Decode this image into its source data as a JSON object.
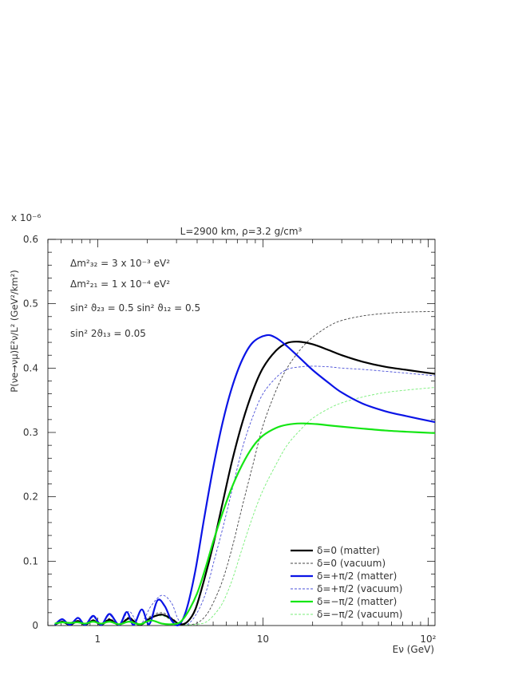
{
  "chart_data": {
    "type": "line",
    "title": "L=2900 km, ρ=3.2 g/cm³",
    "xlabel": "Eν (GeV)",
    "ylabel": "P(νe→νμ)E²ν/L²  (GeV²/km²)",
    "y_multiplier": "x 10⁻⁶",
    "x_scale": "log",
    "xlim": [
      0.5,
      110
    ],
    "ylim": [
      0,
      0.6
    ],
    "x_ticks": [
      {
        "value": 1,
        "label": "1"
      },
      {
        "value": 10,
        "label": "10"
      },
      {
        "value": 100,
        "label": "10²"
      }
    ],
    "y_ticks": [
      {
        "value": 0,
        "label": "0"
      },
      {
        "value": 0.1,
        "label": "0.1"
      },
      {
        "value": 0.2,
        "label": "0.2"
      },
      {
        "value": 0.3,
        "label": "0.3"
      },
      {
        "value": 0.4,
        "label": "0.4"
      },
      {
        "value": 0.5,
        "label": "0.5"
      },
      {
        "value": 0.6,
        "label": "0.6"
      }
    ],
    "annotations": [
      "Δm²₃₂ = 3 x 10⁻³ eV²",
      "Δm²₂₁ = 1 x 10⁻⁴ eV²",
      "sin² ϑ₂₃ = 0.5    sin² ϑ₁₂ = 0.5",
      "sin² 2ϑ₁₃ = 0.05"
    ],
    "legend_position": "bottom-right",
    "series": [
      {
        "name": "δ=0 (matter)",
        "color": "#000000",
        "style": "solid",
        "x": [
          0.55,
          0.61,
          0.68,
          0.76,
          0.84,
          0.94,
          1.05,
          1.18,
          1.35,
          1.55,
          1.8,
          2.1,
          2.45,
          2.8,
          3.15,
          3.5,
          3.9,
          4.4,
          5,
          5.7,
          6.5,
          7.5,
          8.7,
          10,
          12,
          14,
          16.5,
          20,
          25,
          30,
          40,
          55,
          75,
          110
        ],
        "y": [
          0.001,
          0.006,
          0.001,
          0.007,
          0.001,
          0.008,
          0.001,
          0.009,
          0.001,
          0.011,
          0.001,
          0.012,
          0.017,
          0.01,
          0.002,
          0.006,
          0.025,
          0.07,
          0.125,
          0.19,
          0.255,
          0.315,
          0.365,
          0.4,
          0.427,
          0.439,
          0.441,
          0.437,
          0.428,
          0.42,
          0.41,
          0.402,
          0.397,
          0.391
        ]
      },
      {
        "name": "δ=0 (vacuum)",
        "color": "#444444",
        "style": "dashed",
        "x": [
          0.55,
          0.61,
          0.68,
          0.76,
          0.84,
          0.94,
          1.05,
          1.18,
          1.35,
          1.55,
          1.8,
          2.1,
          2.45,
          2.8,
          3.15,
          3.5,
          4,
          4.5,
          5,
          5.7,
          6.5,
          7.5,
          8.7,
          10,
          12,
          14,
          17,
          20,
          25,
          30,
          40,
          55,
          75,
          110
        ],
        "y": [
          0.001,
          0.007,
          0.001,
          0.008,
          0.001,
          0.009,
          0.001,
          0.011,
          0.001,
          0.013,
          0.001,
          0.015,
          0.02,
          0.012,
          0.002,
          0.001,
          0.004,
          0.015,
          0.035,
          0.07,
          0.12,
          0.185,
          0.25,
          0.31,
          0.365,
          0.4,
          0.43,
          0.448,
          0.465,
          0.474,
          0.481,
          0.485,
          0.487,
          0.488
        ]
      },
      {
        "name": "δ=+π/2 (matter)",
        "color": "#0a14e6",
        "style": "solid",
        "x": [
          0.55,
          0.61,
          0.68,
          0.76,
          0.84,
          0.94,
          1.05,
          1.18,
          1.35,
          1.5,
          1.65,
          1.85,
          2.05,
          2.3,
          2.55,
          2.8,
          3.1,
          3.45,
          3.9,
          4.4,
          5,
          5.7,
          6.5,
          7.5,
          8.7,
          10.5,
          12,
          14,
          17,
          20,
          25,
          30,
          40,
          55,
          75,
          110
        ],
        "y": [
          0.001,
          0.01,
          0.001,
          0.012,
          0.001,
          0.015,
          0.001,
          0.018,
          0.001,
          0.021,
          0.001,
          0.025,
          0.002,
          0.039,
          0.03,
          0.008,
          0.001,
          0.025,
          0.085,
          0.165,
          0.245,
          0.315,
          0.37,
          0.413,
          0.44,
          0.451,
          0.447,
          0.434,
          0.414,
          0.397,
          0.377,
          0.362,
          0.345,
          0.333,
          0.325,
          0.316
        ]
      },
      {
        "name": "δ=+π/2 (vacuum)",
        "color": "#4a50d8",
        "style": "dashed",
        "x": [
          0.55,
          0.61,
          0.68,
          0.76,
          0.84,
          0.94,
          1.05,
          1.18,
          1.35,
          1.55,
          1.8,
          2.1,
          2.45,
          2.8,
          3.1,
          3.5,
          4,
          4.5,
          5,
          5.7,
          6.5,
          7.5,
          8.7,
          10,
          12,
          14,
          17,
          20,
          25,
          30,
          40,
          55,
          75,
          110
        ],
        "y": [
          0.001,
          0.009,
          0.001,
          0.011,
          0.001,
          0.013,
          0.001,
          0.016,
          0.001,
          0.022,
          0.001,
          0.03,
          0.047,
          0.035,
          0.008,
          0.002,
          0.02,
          0.05,
          0.095,
          0.15,
          0.21,
          0.275,
          0.325,
          0.36,
          0.385,
          0.398,
          0.402,
          0.403,
          0.402,
          0.4,
          0.398,
          0.395,
          0.392,
          0.388
        ]
      },
      {
        "name": "δ=−π/2 (matter)",
        "color": "#14e614",
        "style": "solid",
        "x": [
          0.55,
          0.61,
          0.68,
          0.76,
          0.84,
          0.94,
          1.05,
          1.18,
          1.35,
          1.55,
          1.8,
          2.1,
          2.45,
          2.8,
          3.15,
          3.5,
          4,
          4.5,
          5,
          5.7,
          6.5,
          7.5,
          8.7,
          10,
          12,
          14,
          17,
          21,
          25,
          30,
          40,
          55,
          75,
          110
        ],
        "y": [
          0.003,
          0.005,
          0.004,
          0.005,
          0.003,
          0.006,
          0.003,
          0.006,
          0.002,
          0.006,
          0.002,
          0.008,
          0.003,
          0.002,
          0.005,
          0.02,
          0.05,
          0.09,
          0.13,
          0.175,
          0.215,
          0.25,
          0.278,
          0.295,
          0.307,
          0.312,
          0.314,
          0.313,
          0.311,
          0.309,
          0.306,
          0.303,
          0.301,
          0.299
        ]
      },
      {
        "name": "δ=−π/2 (vacuum)",
        "color": "#78ee78",
        "style": "dashed",
        "x": [
          0.55,
          0.61,
          0.68,
          0.76,
          0.84,
          0.94,
          1.05,
          1.18,
          1.35,
          1.55,
          1.8,
          2.1,
          2.45,
          2.8,
          3.15,
          3.5,
          4,
          4.5,
          5,
          5.7,
          6.5,
          7.5,
          8.7,
          10,
          12,
          14,
          17,
          20,
          25,
          30,
          40,
          55,
          75,
          110
        ],
        "y": [
          0.002,
          0.004,
          0.002,
          0.005,
          0.002,
          0.006,
          0.002,
          0.007,
          0.002,
          0.01,
          0.003,
          0.012,
          0.015,
          0.008,
          0.002,
          0.001,
          0.002,
          0.005,
          0.015,
          0.035,
          0.07,
          0.12,
          0.17,
          0.21,
          0.25,
          0.28,
          0.305,
          0.322,
          0.337,
          0.346,
          0.355,
          0.362,
          0.366,
          0.37
        ]
      }
    ]
  }
}
